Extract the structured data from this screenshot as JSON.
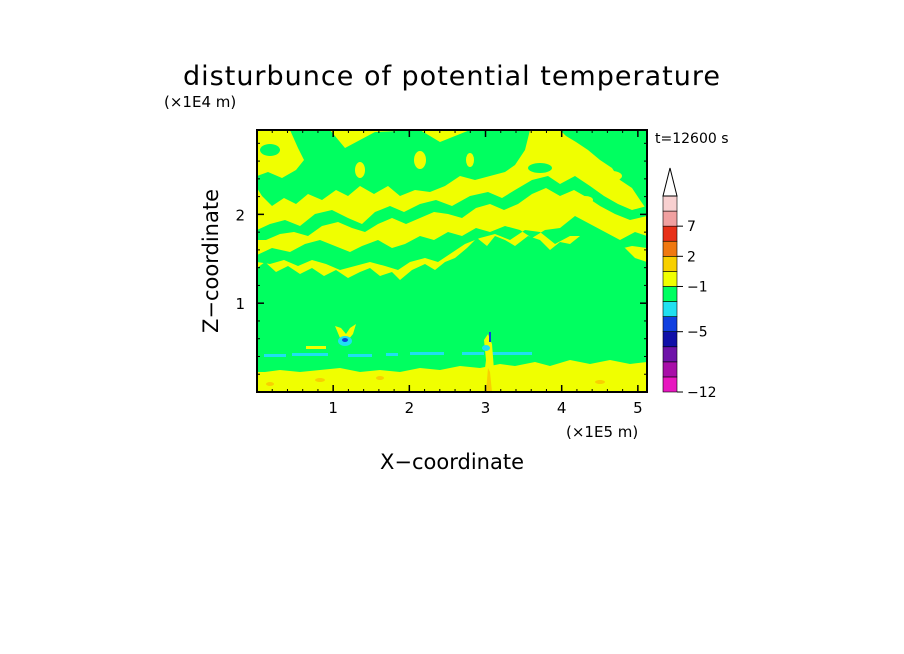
{
  "chart_data": {
    "type": "heatmap",
    "title": "disturbunce of potential temperature",
    "time_label": "t=12600 s",
    "xlabel": "X−coordinate",
    "ylabel": "Z−coordinate",
    "x_unit": "(×1E5 m)",
    "y_unit": "(×1E4 m)",
    "xlim": [
      0,
      5.12
    ],
    "ylim": [
      0,
      2.95
    ],
    "x_ticks": [
      1,
      2,
      3,
      4,
      5
    ],
    "y_ticks": [
      1,
      2
    ],
    "x_tick_labels": [
      "1",
      "2",
      "3",
      "4",
      "5"
    ],
    "y_tick_labels": [
      "1",
      "2"
    ],
    "grid": false,
    "colorbar": {
      "position": "right",
      "extend": "max",
      "labels": [
        "7",
        "2",
        "−1",
        "−5",
        "−12"
      ],
      "label_levels": [
        7,
        2,
        -1,
        -5,
        -12
      ],
      "colors": [
        "#e817c0",
        "#a80ea8",
        "#6e13a8",
        "#1010a8",
        "#1040e0",
        "#20e0f0",
        "#00ff60",
        "#f0ff00",
        "#f8d000",
        "#f07810",
        "#e83018",
        "#f0a0a0",
        "#f8d0d0"
      ]
    },
    "regions": [
      {
        "value": -0.5,
        "color": "#00ff60",
        "description": "weak negative disturbance, fills mid-troposphere 0.25-1.8"
      },
      {
        "value": 0.5,
        "color": "#f0ff00",
        "description": "weak positive disturbance, surface layer and upper bands"
      },
      {
        "value": -1.5,
        "color": "#20e0f0",
        "description": "cyan cells near z=0.4-0.6"
      },
      {
        "value": 1.5,
        "color": "#f8d000",
        "description": "orange-yellow spots near surface"
      }
    ]
  }
}
